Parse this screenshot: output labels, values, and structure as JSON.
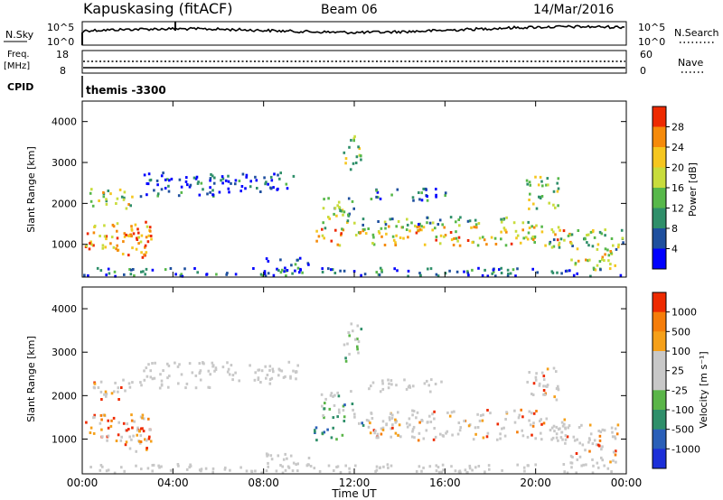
{
  "header": {
    "station": "Kapuskasing (fitACF)",
    "beam": "Beam 06",
    "date": "14/Mar/2016"
  },
  "panels": {
    "nsky": {
      "left_label": "N.Sky",
      "right_label": "N.Search",
      "ticks_left": [
        "10^5",
        "10^0"
      ],
      "ticks_right": [
        "10^5",
        "10^0"
      ]
    },
    "freq": {
      "left_label_1": "Freq.",
      "left_label_2": "[MHz]",
      "right_label": "Nave",
      "ticks_left": [
        "18",
        "8"
      ],
      "ticks_right": [
        "60",
        "0"
      ]
    },
    "cpid": {
      "label": "CPID",
      "value": "themis -3300"
    }
  },
  "chart_data": [
    {
      "type": "heatmap",
      "name": "power",
      "ylabel": "Slant Range [km]",
      "ylim": [
        200,
        4500
      ],
      "yticks": [
        1000,
        2000,
        3000,
        4000
      ],
      "xlim": [
        0,
        24
      ],
      "colorbar_label": "Power [dB]",
      "colorbar_ticks": [
        "28",
        "24",
        "20",
        "16",
        "12",
        "8",
        "4"
      ],
      "colors": [
        "#0000ff",
        "#1e4f9e",
        "#2f8f6a",
        "#57b84a",
        "#c8dc3c",
        "#f5c61f",
        "#f58a0a",
        "#ee2a00"
      ]
    },
    {
      "type": "heatmap",
      "name": "velocity",
      "ylabel": "Slant Range [km]",
      "ylim": [
        200,
        4500
      ],
      "yticks": [
        1000,
        2000,
        3000,
        4000
      ],
      "xlim": [
        0,
        24
      ],
      "colorbar_label": "Velocity [m s⁻¹]",
      "colorbar_ticks": [
        "1000",
        "500",
        "100",
        "25",
        "-25",
        "-100",
        "-500",
        "-1000"
      ],
      "colors": [
        "#1c2fd8",
        "#2a5fb8",
        "#2f8f6a",
        "#5ab548",
        "#c8c8c8",
        "#c8c8c8",
        "#f5a019",
        "#f57d0a",
        "#ee2a00"
      ]
    }
  ],
  "xaxis": {
    "label": "Time UT",
    "ticks": [
      "00:00",
      "04:00",
      "08:00",
      "12:00",
      "16:00",
      "20:00",
      "00:00"
    ]
  }
}
